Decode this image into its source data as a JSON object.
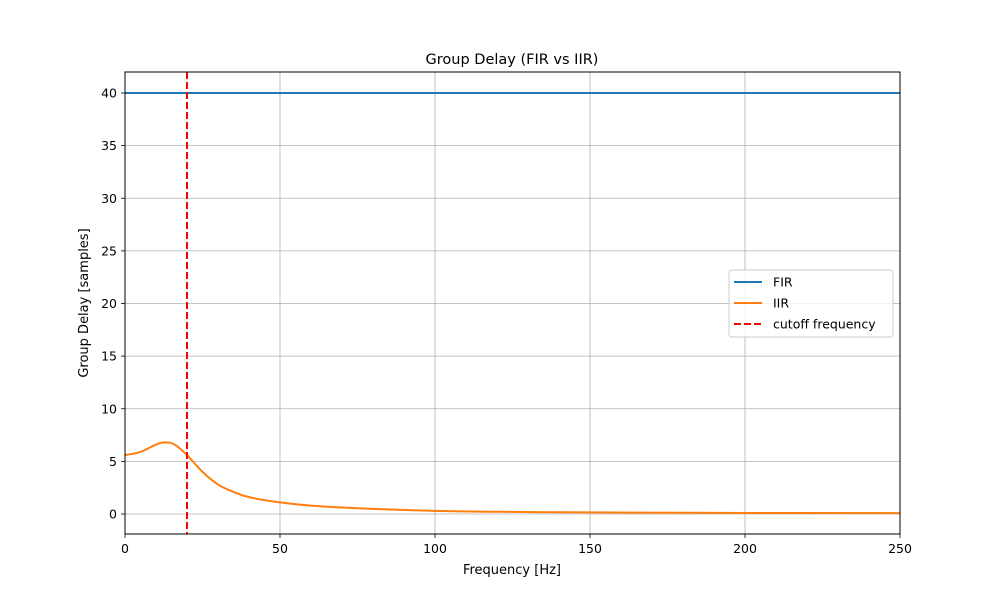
{
  "chart_data": {
    "type": "line",
    "title": "Group Delay (FIR vs IIR)",
    "xlabel": "Frequency [Hz]",
    "ylabel": "Group Delay [samples]",
    "xlim": [
      0,
      250
    ],
    "ylim": [
      -2,
      42
    ],
    "xticks": [
      0,
      50,
      100,
      150,
      200,
      250
    ],
    "yticks": [
      0,
      5,
      10,
      15,
      20,
      25,
      30,
      35,
      40
    ],
    "grid": true,
    "legend_position": "center right",
    "series": [
      {
        "name": "FIR",
        "color": "#1f77b4",
        "style": "solid",
        "x": [
          0,
          250
        ],
        "y": [
          40,
          40
        ]
      },
      {
        "name": "IIR",
        "color": "#ff7f0e",
        "style": "solid",
        "x": [
          0,
          5,
          10,
          13,
          16,
          20,
          25,
          30,
          35,
          40,
          50,
          60,
          75,
          100,
          125,
          150,
          200,
          250
        ],
        "y": [
          5.6,
          5.9,
          6.6,
          6.8,
          6.6,
          5.6,
          4.0,
          2.8,
          2.1,
          1.6,
          1.1,
          0.8,
          0.55,
          0.3,
          0.2,
          0.15,
          0.1,
          0.08
        ]
      },
      {
        "name": "cutoff frequency",
        "color": "#ff0000",
        "style": "dashed",
        "x": [
          20,
          20
        ],
        "y": [
          -2,
          42
        ]
      }
    ]
  }
}
